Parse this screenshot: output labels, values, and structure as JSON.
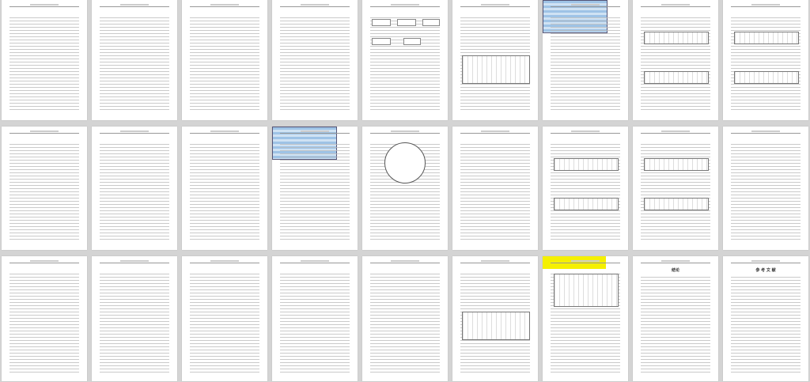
{
  "document": {
    "pages": [
      {
        "title": ""
      },
      {
        "title": ""
      },
      {
        "title": ""
      },
      {
        "title": "",
        "figure": "none"
      },
      {
        "title": "",
        "figure": "flowchart"
      },
      {
        "title": "",
        "figure": "table"
      },
      {
        "title": "",
        "figure": "table-blue"
      },
      {
        "title": "",
        "figure": "diagram"
      },
      {
        "title": "",
        "figure": "diagram"
      },
      {
        "title": ""
      },
      {
        "title": ""
      },
      {
        "title": ""
      },
      {
        "title": "",
        "figure": "table-blue"
      },
      {
        "title": "",
        "figure": "circle"
      },
      {
        "title": ""
      },
      {
        "title": "",
        "figure": "diagram"
      },
      {
        "title": "",
        "figure": "diagram"
      },
      {
        "title": ""
      },
      {
        "title": ""
      },
      {
        "title": ""
      },
      {
        "title": ""
      },
      {
        "title": ""
      },
      {
        "title": ""
      },
      {
        "title": "",
        "figure": "table"
      },
      {
        "title": "",
        "figure": "yellow"
      },
      {
        "title": "结论"
      },
      {
        "title": "参 考 文 献"
      }
    ]
  }
}
